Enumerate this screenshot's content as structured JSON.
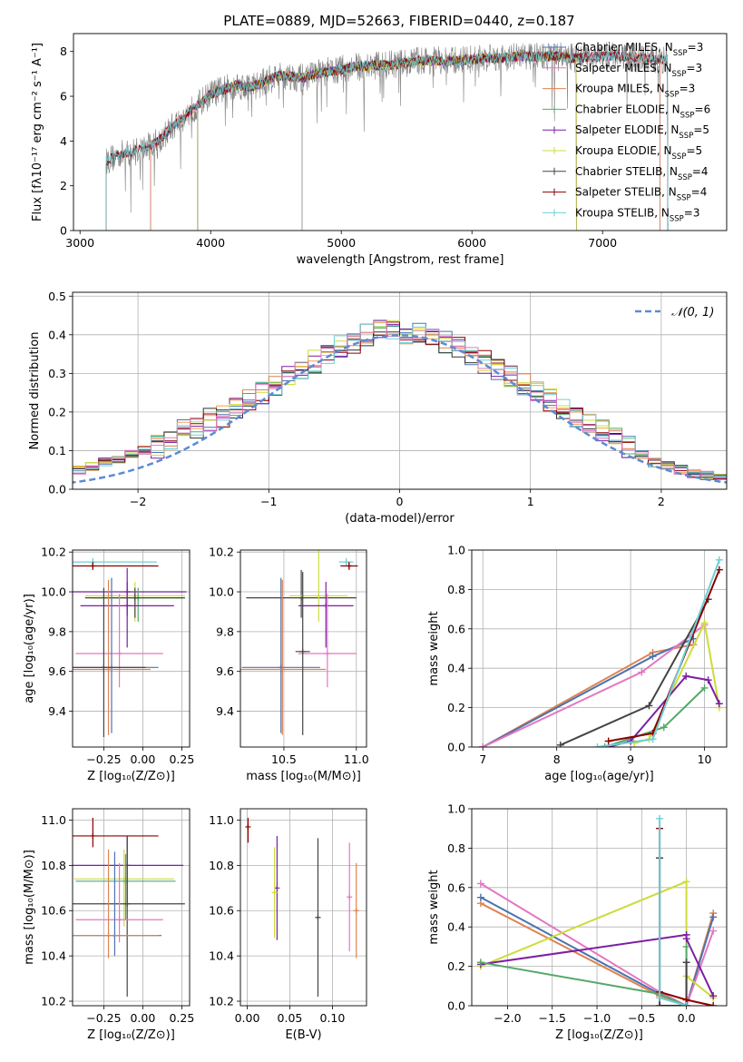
{
  "title": "PLATE=0889, MJD=52663, FIBERID=0440, z=0.187",
  "colors": [
    "#4c72b0",
    "#dd8452",
    "#f0a050",
    "#55a868",
    "#7b1fa2",
    "#cddc39",
    "#333333",
    "#8b0000",
    "#6ecfd6",
    "#e377c2"
  ],
  "chart_data": [
    {
      "type": "line",
      "id": "spectrum",
      "xlabel": "wavelength [Angstrom, rest frame]",
      "ylabel": "Flux [fλ10⁻¹⁷ erg cm⁻² s⁻¹ A⁻¹]",
      "xlim": [
        2950,
        7950
      ],
      "ylim": [
        0,
        8.8
      ],
      "xticks": [
        3000,
        4000,
        5000,
        6000,
        7000
      ],
      "yticks": [
        0,
        2,
        4,
        6,
        8
      ],
      "legend_position": "top-right",
      "series": [
        {
          "name": "Chabrier MILES, N_SSP=3",
          "color": "#4c72b0",
          "start": 3540,
          "end": 7440
        },
        {
          "name": "Salpeter MILES, N_SSP=3",
          "color": "#e377c2",
          "start": 3540,
          "end": 7440
        },
        {
          "name": "Kroupa MILES, N_SSP=3",
          "color": "#dd8452",
          "start": 3540,
          "end": 7440
        },
        {
          "name": "Chabrier ELODIE, N_SSP=6",
          "color": "#55a868",
          "start": 3900,
          "end": 6800
        },
        {
          "name": "Salpeter ELODIE, N_SSP=5",
          "color": "#7b1fa2",
          "start": 3900,
          "end": 6800
        },
        {
          "name": "Kroupa ELODIE, N_SSP=5",
          "color": "#cddc39",
          "start": 3900,
          "end": 6800
        },
        {
          "name": "Chabrier STELIB, N_SSP=4",
          "color": "#444444",
          "start": 3200,
          "end": 7500
        },
        {
          "name": "Salpeter STELIB, N_SSP=4",
          "color": "#8b0000",
          "start": 3200,
          "end": 7500
        },
        {
          "name": "Kroupa STELIB, N_SSP=3",
          "color": "#6ecfd6",
          "start": 3200,
          "end": 7500
        }
      ],
      "spectrum_data": {
        "name": "data",
        "color": "#808080",
        "x": [
          3200,
          3300,
          3400,
          3500,
          3600,
          3700,
          3800,
          3900,
          4000,
          4100,
          4200,
          4300,
          4400,
          4500,
          4600,
          4700,
          4800,
          4900,
          5000,
          5100,
          5200,
          5300,
          5400,
          5500,
          5600,
          5700,
          5800,
          5900,
          6000,
          6100,
          6200,
          6300,
          6400,
          6500,
          6600,
          6700,
          6800,
          6900,
          7000,
          7100,
          7200,
          7300,
          7400,
          7500
        ],
        "y": [
          3.1,
          3.4,
          3.5,
          3.7,
          4.0,
          4.6,
          5.1,
          5.6,
          6.1,
          6.3,
          6.5,
          6.4,
          6.6,
          6.9,
          6.9,
          6.8,
          7.0,
          7.1,
          7.2,
          7.3,
          7.35,
          7.4,
          7.4,
          7.5,
          7.6,
          7.6,
          7.55,
          7.6,
          7.65,
          7.7,
          7.7,
          7.75,
          7.8,
          7.75,
          7.8,
          7.75,
          7.7,
          7.75,
          7.8,
          7.8,
          7.75,
          7.7,
          7.65,
          7.6
        ]
      }
    },
    {
      "type": "histogram",
      "id": "residuals",
      "xlabel": "(data-model)/error",
      "ylabel": "Normed distribution",
      "xlim": [
        -2.5,
        2.5
      ],
      "ylim": [
        0,
        0.51
      ],
      "xticks": [
        -2,
        -1,
        0,
        1,
        2
      ],
      "yticks": [
        0.0,
        0.1,
        0.2,
        0.3,
        0.4,
        0.5
      ],
      "bin_width": 0.1,
      "legend_position": "top-right",
      "reference_curve": {
        "name": "𝒩(0, 1)",
        "color": "#5b8bd6",
        "mean": 0,
        "sigma": 1
      },
      "base_values": [
        0.02,
        0.02,
        0.03,
        0.03,
        0.04,
        0.05,
        0.06,
        0.07,
        0.08,
        0.09,
        0.1,
        0.11,
        0.13,
        0.15,
        0.16,
        0.18,
        0.19,
        0.21,
        0.23,
        0.25,
        0.27,
        0.29,
        0.31,
        0.33,
        0.35,
        0.37,
        0.38,
        0.4,
        0.42,
        0.41,
        0.4,
        0.4,
        0.39,
        0.38,
        0.37,
        0.35,
        0.33,
        0.31,
        0.29,
        0.27,
        0.25,
        0.23,
        0.21,
        0.19,
        0.17,
        0.15,
        0.13,
        0.11,
        0.09,
        0.07,
        0.06,
        0.05,
        0.04,
        0.035,
        0.03,
        0.025,
        0.02,
        0.02,
        0.015,
        0.015
      ]
    },
    {
      "type": "errorbar",
      "id": "age-vs-Z",
      "xlabel": "Z [log₁₀(Z/Z⊙)]",
      "ylabel": "age  [log₁₀(age/yr)]",
      "xlim": [
        -0.45,
        0.3
      ],
      "ylim": [
        9.22,
        10.21
      ],
      "xticks": [
        -0.25,
        0.0,
        0.25
      ],
      "yticks": [
        9.4,
        9.6,
        9.8,
        10.0,
        10.2
      ],
      "points": [
        {
          "x": -0.32,
          "xerr": 0.41,
          "y": 10.15,
          "yerr": [
            0.02,
            0.02
          ],
          "color": "#6ecfd6"
        },
        {
          "x": -0.32,
          "xerr": 0.42,
          "y": 10.13,
          "yerr": [
            0.02,
            0.02
          ],
          "color": "#8b0000"
        },
        {
          "x": -0.1,
          "xerr": 0.38,
          "y": 10.0,
          "yerr": [
            0.12,
            0.12
          ],
          "color": "#7b1fa2"
        },
        {
          "x": -0.05,
          "xerr": 0.32,
          "y": 9.98,
          "yerr": [
            0.13,
            0.07
          ],
          "color": "#cddc39"
        },
        {
          "x": -0.03,
          "xerr": 0.3,
          "y": 9.97,
          "yerr": [
            0.12,
            0.05
          ],
          "color": "#55a868"
        },
        {
          "x": -0.05,
          "xerr": 0.32,
          "y": 9.97,
          "yerr": [
            0.1,
            0.05
          ],
          "color": "#444444"
        },
        {
          "x": -0.1,
          "xerr": 0.3,
          "y": 9.93,
          "yerr": [
            0.21,
            0.12
          ],
          "color": "#7b1fa2"
        },
        {
          "x": -0.15,
          "xerr": 0.28,
          "y": 9.69,
          "yerr": [
            0.17,
            0.3
          ],
          "color": "#e377c2"
        },
        {
          "x": -0.2,
          "xerr": 0.3,
          "y": 9.62,
          "yerr": [
            0.33,
            0.45
          ],
          "color": "#4c72b0"
        },
        {
          "x": -0.22,
          "xerr": 0.27,
          "y": 9.61,
          "yerr": [
            0.33,
            0.45
          ],
          "color": "#dd8452"
        },
        {
          "x": -0.25,
          "xerr": 0.27,
          "y": 9.62,
          "yerr": [
            0.35,
            0.4
          ],
          "color": "#444444"
        }
      ]
    },
    {
      "type": "errorbar",
      "id": "age-vs-mass",
      "xlabel": "mass [log₁₀(M/M⊙)]",
      "ylabel": "",
      "xlim": [
        10.2,
        11.07
      ],
      "ylim": [
        9.22,
        10.21
      ],
      "xticks": [
        10.5,
        11.0
      ],
      "yticks": [
        9.4,
        9.6,
        9.8,
        10.0,
        10.2
      ],
      "points": [
        {
          "x": 10.93,
          "xerr": 0.05,
          "y": 10.15,
          "yerr": [
            0.02,
            0.02
          ],
          "color": "#6ecfd6"
        },
        {
          "x": 10.95,
          "xerr": 0.06,
          "y": 10.13,
          "yerr": [
            0.02,
            0.02
          ],
          "color": "#8b0000"
        },
        {
          "x": 10.62,
          "xerr": 0.38,
          "y": 9.97,
          "yerr": [
            0.1,
            0.14
          ],
          "color": "#444444"
        },
        {
          "x": 10.74,
          "xerr": 0.2,
          "y": 9.98,
          "yerr": [
            0.13,
            0.29
          ],
          "color": "#cddc39"
        },
        {
          "x": 10.79,
          "xerr": 0.19,
          "y": 9.93,
          "yerr": [
            0.21,
            0.12
          ],
          "color": "#7b1fa2"
        },
        {
          "x": 10.8,
          "xerr": 0.2,
          "y": 9.69,
          "yerr": [
            0.17,
            0.3
          ],
          "color": "#e377c2"
        },
        {
          "x": 10.48,
          "xerr": 0.27,
          "y": 9.62,
          "yerr": [
            0.33,
            0.45
          ],
          "color": "#4c72b0"
        },
        {
          "x": 10.49,
          "xerr": 0.3,
          "y": 9.61,
          "yerr": [
            0.33,
            0.45
          ],
          "color": "#dd8452"
        },
        {
          "x": 10.63,
          "xerr": 0.05,
          "y": 9.7,
          "yerr": [
            0.42,
            0.4
          ],
          "color": "#444444"
        }
      ]
    },
    {
      "type": "line",
      "id": "mass-weight-vs-age",
      "xlabel": "age  [log₁₀(age/yr)]",
      "ylabel": "mass weight",
      "xlim": [
        6.85,
        10.3
      ],
      "ylim": [
        0,
        1.0
      ],
      "xticks": [
        7,
        8,
        9,
        10
      ],
      "yticks": [
        0.0,
        0.2,
        0.4,
        0.6,
        0.8,
        1.0
      ],
      "series": [
        {
          "color": "#dd8452",
          "x": [
            7.0,
            9.3,
            9.85
          ],
          "y": [
            0.0,
            0.48,
            0.52
          ]
        },
        {
          "color": "#4c72b0",
          "x": [
            7.0,
            9.3,
            9.85
          ],
          "y": [
            0.0,
            0.46,
            0.55
          ]
        },
        {
          "color": "#e377c2",
          "x": [
            7.0,
            9.15,
            10.0
          ],
          "y": [
            0.0,
            0.38,
            0.62
          ]
        },
        {
          "color": "#444444",
          "x": [
            8.05,
            9.25,
            10.05
          ],
          "y": [
            0.01,
            0.21,
            0.75
          ]
        },
        {
          "color": "#55a868",
          "x": [
            8.65,
            9.45,
            10.0
          ],
          "y": [
            0.0,
            0.1,
            0.3
          ]
        },
        {
          "color": "#cddc39",
          "x": [
            9.05,
            9.25,
            10.0,
            10.2
          ],
          "y": [
            0.02,
            0.04,
            0.63,
            0.2
          ]
        },
        {
          "color": "#7b1fa2",
          "x": [
            8.7,
            9.0,
            9.75,
            10.05,
            10.2
          ],
          "y": [
            0.0,
            0.03,
            0.36,
            0.34,
            0.22
          ]
        },
        {
          "color": "#8b0000",
          "x": [
            8.7,
            9.3,
            10.2
          ],
          "y": [
            0.03,
            0.07,
            0.9
          ]
        },
        {
          "color": "#6ecfd6",
          "x": [
            8.55,
            9.3,
            10.2
          ],
          "y": [
            0.0,
            0.04,
            0.95
          ]
        }
      ]
    },
    {
      "type": "errorbar",
      "id": "mass-vs-Z",
      "xlabel": "Z [log₁₀(Z/Z⊙)]",
      "ylabel": "mass [log₁₀(M/M⊙)]",
      "xlim": [
        -0.45,
        0.3
      ],
      "ylim": [
        10.18,
        11.05
      ],
      "xticks": [
        -0.25,
        0.0,
        0.25
      ],
      "yticks": [
        10.2,
        10.4,
        10.6,
        10.8,
        11.0
      ],
      "points": [
        {
          "x": -0.32,
          "xerr": 0.42,
          "y": 10.93,
          "yerr": [
            0.05,
            0.08
          ],
          "color": "#8b0000"
        },
        {
          "x": -0.1,
          "xerr": 0.36,
          "y": 10.8,
          "yerr": [
            0.16,
            0.13
          ],
          "color": "#7b1fa2"
        },
        {
          "x": -0.12,
          "xerr": 0.32,
          "y": 10.74,
          "yerr": [
            0.21,
            0.13
          ],
          "color": "#cddc39"
        },
        {
          "x": -0.11,
          "xerr": 0.32,
          "y": 10.73,
          "yerr": [
            0.17,
            0.12
          ],
          "color": "#55a868"
        },
        {
          "x": -0.1,
          "xerr": 0.37,
          "y": 10.63,
          "yerr": [
            0.41,
            0.3
          ],
          "color": "#444444"
        },
        {
          "x": -0.15,
          "xerr": 0.28,
          "y": 10.56,
          "yerr": [
            0.1,
            0.25
          ],
          "color": "#e377c2"
        },
        {
          "x": -0.18,
          "xerr": 0.3,
          "y": 10.49,
          "yerr": [
            0.09,
            0.37
          ],
          "color": "#4c72b0"
        },
        {
          "x": -0.22,
          "xerr": 0.32,
          "y": 10.49,
          "yerr": [
            0.1,
            0.38
          ],
          "color": "#dd8452"
        }
      ]
    },
    {
      "type": "errorbar",
      "id": "mass-vs-EBV",
      "xlabel": "E(B-V)",
      "ylabel": "",
      "xlim": [
        -0.008,
        0.14
      ],
      "ylim": [
        10.18,
        11.05
      ],
      "xticks": [
        0.0,
        0.05,
        0.1
      ],
      "yticks": [
        10.2,
        10.4,
        10.6,
        10.8,
        11.0
      ],
      "points": [
        {
          "x": 0.001,
          "xerr": 0.0,
          "y": 10.97,
          "yerr": [
            0.07,
            0.04
          ],
          "color": "#8b0000"
        },
        {
          "x": 0.035,
          "xerr": 0.0,
          "y": 10.7,
          "yerr": [
            0.23,
            0.23
          ],
          "color": "#7b1fa2"
        },
        {
          "x": 0.032,
          "xerr": 0.0,
          "y": 10.68,
          "yerr": [
            0.2,
            0.2
          ],
          "color": "#cddc39"
        },
        {
          "x": 0.083,
          "xerr": 0.0,
          "y": 10.57,
          "yerr": [
            0.35,
            0.35
          ],
          "color": "#444444"
        },
        {
          "x": 0.12,
          "xerr": 0.0,
          "y": 10.66,
          "yerr": [
            0.24,
            0.24
          ],
          "color": "#e377c2"
        },
        {
          "x": 0.128,
          "xerr": 0.0,
          "y": 10.6,
          "yerr": [
            0.21,
            0.21
          ],
          "color": "#dd8452"
        }
      ]
    },
    {
      "type": "line",
      "id": "mass-weight-vs-Z",
      "xlabel": "Z [log₁₀(Z/Z⊙)]",
      "ylabel": "mass weight",
      "xlim": [
        -2.4,
        0.45
      ],
      "ylim": [
        0,
        1.0
      ],
      "xticks": [
        -2.0,
        -1.5,
        -1.0,
        -0.5,
        0.0
      ],
      "yticks": [
        0.0,
        0.2,
        0.4,
        0.6,
        0.8,
        1.0
      ],
      "series": [
        {
          "color": "#dd8452",
          "x": [
            -2.3,
            -0.3,
            0.0,
            0.3
          ],
          "y": [
            0.52,
            0.05,
            0.0,
            0.47
          ]
        },
        {
          "color": "#4c72b0",
          "x": [
            -2.3,
            -0.3,
            0.0,
            0.3
          ],
          "y": [
            0.55,
            0.06,
            0.0,
            0.45
          ]
        },
        {
          "color": "#e377c2",
          "x": [
            -2.3,
            -0.3,
            0.0,
            0.3
          ],
          "y": [
            0.62,
            0.07,
            0.0,
            0.38
          ]
        },
        {
          "color": "#cddc39",
          "x": [
            -2.3,
            0.0,
            0.0,
            0.3
          ],
          "y": [
            0.2,
            0.63,
            0.15,
            0.04
          ]
        },
        {
          "color": "#7b1fa2",
          "x": [
            -2.3,
            0.0,
            0.0,
            0.3
          ],
          "y": [
            0.21,
            0.36,
            0.34,
            0.05
          ]
        },
        {
          "color": "#55a868",
          "x": [
            -2.3,
            -0.3,
            0.0,
            0.0
          ],
          "y": [
            0.22,
            0.06,
            0.0,
            0.3
          ]
        },
        {
          "color": "#444444",
          "x": [
            -0.3,
            -0.3,
            0.0,
            0.0
          ],
          "y": [
            0.75,
            0.0,
            0.0,
            0.22
          ]
        },
        {
          "color": "#8b0000",
          "x": [
            -0.3,
            -0.3,
            0.0,
            0.3
          ],
          "y": [
            0.9,
            0.07,
            0.03,
            0.0
          ]
        },
        {
          "color": "#6ecfd6",
          "x": [
            -0.3,
            -0.3,
            0.0
          ],
          "y": [
            0.95,
            0.04,
            0.0
          ]
        }
      ]
    }
  ]
}
